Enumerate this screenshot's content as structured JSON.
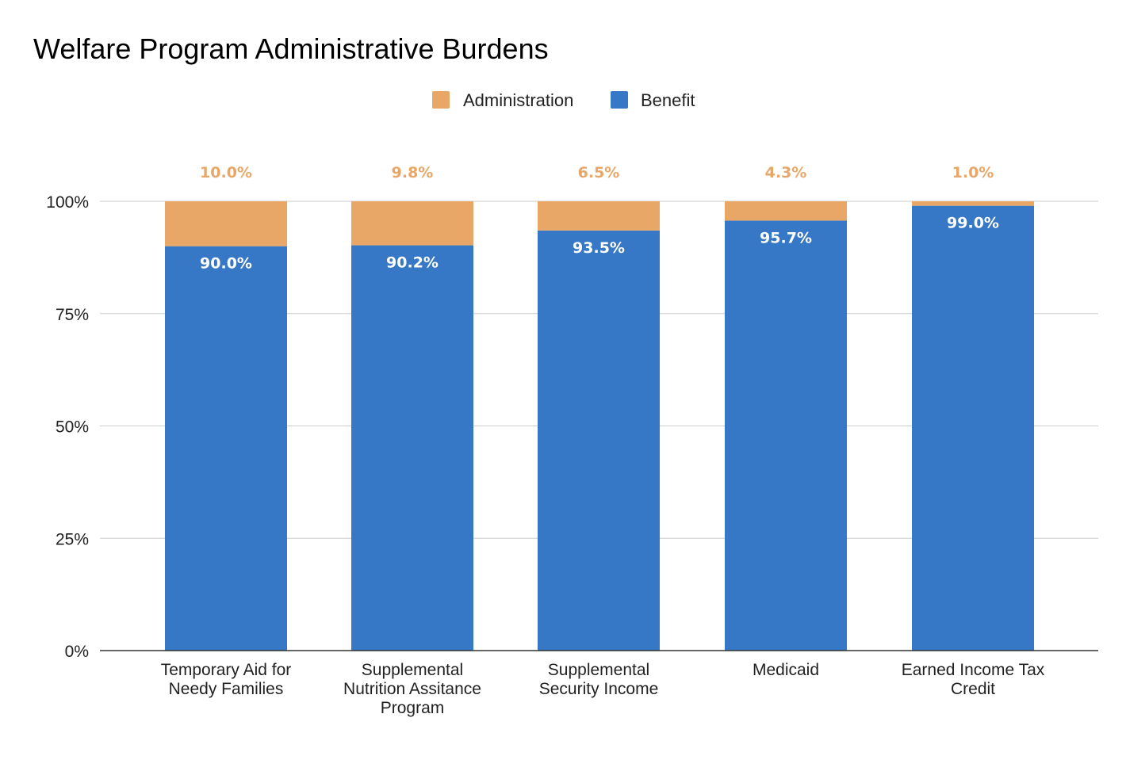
{
  "chart_data": {
    "type": "bar",
    "stacked": true,
    "title": "Welfare Program Administrative Burdens",
    "xlabel": "",
    "ylabel": "",
    "ylim": [
      0,
      100
    ],
    "y_ticks": [
      "0%",
      "25%",
      "50%",
      "75%",
      "100%"
    ],
    "y_tick_values": [
      0,
      25,
      50,
      75,
      100
    ],
    "grid": true,
    "legend_position": "top-center",
    "legend": [
      "Administration",
      "Benefit"
    ],
    "categories": [
      [
        "Temporary Aid for",
        "Needy Families"
      ],
      [
        "Supplemental",
        "Nutrition Assitance",
        "Program"
      ],
      [
        "Supplemental",
        "Security Income"
      ],
      [
        "Medicaid"
      ],
      [
        "Earned Income Tax",
        "Credit"
      ]
    ],
    "series": [
      {
        "name": "Benefit",
        "color": "#3778c6",
        "values": [
          90.0,
          90.2,
          93.5,
          95.7,
          99.0
        ],
        "labels": [
          "90.0%",
          "90.2%",
          "93.5%",
          "95.7%",
          "99.0%"
        ]
      },
      {
        "name": "Administration",
        "color": "#e8a767",
        "values": [
          10.0,
          9.8,
          6.5,
          4.3,
          1.0
        ],
        "labels": [
          "10.0%",
          "9.8%",
          "6.5%",
          "4.3%",
          "1.0%"
        ]
      }
    ]
  }
}
